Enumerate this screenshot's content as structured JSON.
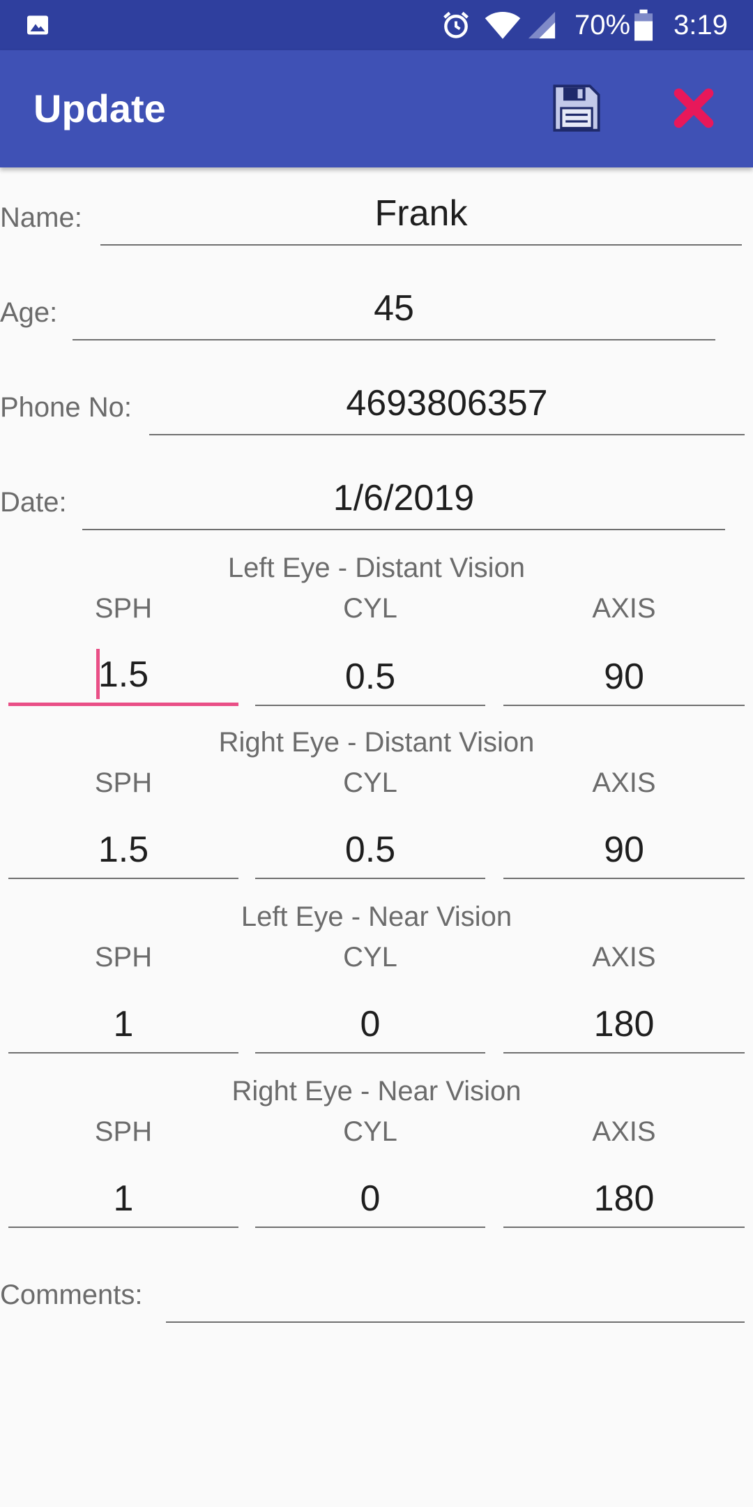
{
  "status_bar": {
    "battery": "70%",
    "time": "3:19",
    "icons": [
      "image-icon",
      "alarm-icon",
      "wifi-icon",
      "signal-icon",
      "battery-icon"
    ]
  },
  "app_bar": {
    "title": "Update",
    "save_icon": "floppy-disk-icon",
    "close_icon": "red-x-icon",
    "colors": {
      "primary": "#3f51b5",
      "status": "#2f3f9e",
      "accent": "#e94f86",
      "close": "#e8185a"
    }
  },
  "form": {
    "name": {
      "label": "Name:",
      "value": "Frank"
    },
    "age": {
      "label": "Age:",
      "value": "45"
    },
    "phone": {
      "label": "Phone No:",
      "value": "4693806357"
    },
    "date": {
      "label": "Date:",
      "value": "1/6/2019"
    },
    "comments": {
      "label": "Comments:",
      "value": ""
    }
  },
  "columns": {
    "sph": "SPH",
    "cyl": "CYL",
    "axis": "AXIS"
  },
  "sections": [
    {
      "title": "Left Eye - Distant Vision",
      "sph": "1.5",
      "cyl": "0.5",
      "axis": "90"
    },
    {
      "title": "Right Eye - Distant Vision",
      "sph": "1.5",
      "cyl": "0.5",
      "axis": "90"
    },
    {
      "title": "Left Eye - Near Vision",
      "sph": "1",
      "cyl": "0",
      "axis": "180"
    },
    {
      "title": "Right Eye - Near Vision",
      "sph": "1",
      "cyl": "0",
      "axis": "180"
    }
  ]
}
